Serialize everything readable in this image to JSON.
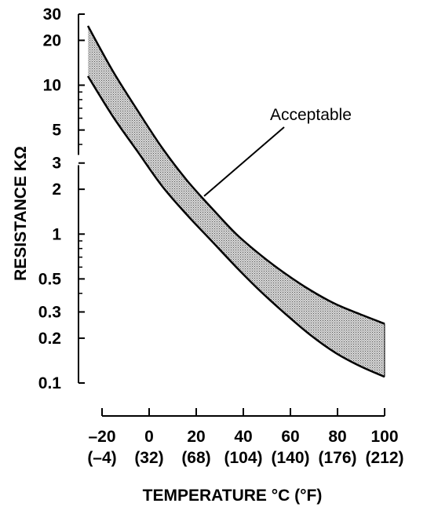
{
  "chart_data": {
    "type": "area",
    "title": "",
    "xlabel": "TEMPERATURE °C (°F)",
    "ylabel": "RESISTANCE KΩ",
    "y_scale": "log",
    "xlim": [
      -20,
      100
    ],
    "ylim": [
      0.1,
      30
    ],
    "x_ticks": [
      {
        "value": -20,
        "label_c": "–20",
        "label_f": "(–4)"
      },
      {
        "value": 0,
        "label_c": "0",
        "label_f": "(32)"
      },
      {
        "value": 20,
        "label_c": "20",
        "label_f": "(68)"
      },
      {
        "value": 40,
        "label_c": "40",
        "label_f": "(104)"
      },
      {
        "value": 60,
        "label_c": "60",
        "label_f": "(140)"
      },
      {
        "value": 80,
        "label_c": "80",
        "label_f": "(176)"
      },
      {
        "value": 100,
        "label_c": "100",
        "label_f": "(212)"
      }
    ],
    "y_ticks": [
      {
        "value": 30,
        "label": "30"
      },
      {
        "value": 20,
        "label": "20"
      },
      {
        "value": 10,
        "label": "10"
      },
      {
        "value": 5,
        "label": "5"
      },
      {
        "value": 3,
        "label": "3"
      },
      {
        "value": 2,
        "label": "2"
      },
      {
        "value": 1,
        "label": "1"
      },
      {
        "value": 0.5,
        "label": "0.5"
      },
      {
        "value": 0.3,
        "label": "0.3"
      },
      {
        "value": 0.2,
        "label": "0.2"
      },
      {
        "value": 0.1,
        "label": "0.1"
      }
    ],
    "y_minor_ticks": [
      4,
      6,
      7,
      8,
      9,
      0.4,
      0.6,
      0.7,
      0.8,
      0.9
    ],
    "series": [
      {
        "role": "upper-limit",
        "x": [
          -20,
          -10,
          0,
          10,
          20,
          30,
          40,
          50,
          60,
          70,
          80,
          90,
          100
        ],
        "values": [
          25,
          12.5,
          6.8,
          3.8,
          2.3,
          1.5,
          1.0,
          0.72,
          0.54,
          0.42,
          0.34,
          0.29,
          0.25
        ]
      },
      {
        "role": "lower-limit",
        "x": [
          -20,
          -10,
          0,
          10,
          20,
          30,
          40,
          50,
          60,
          70,
          80,
          90,
          100
        ],
        "values": [
          11.5,
          6.2,
          3.6,
          2.1,
          1.35,
          0.9,
          0.6,
          0.41,
          0.29,
          0.21,
          0.16,
          0.13,
          0.11
        ]
      }
    ],
    "band_fill": "#b8b8b8",
    "annotations": [
      {
        "text": "Acceptable",
        "points_to": {
          "x": 27,
          "y": 1.8
        }
      }
    ]
  }
}
